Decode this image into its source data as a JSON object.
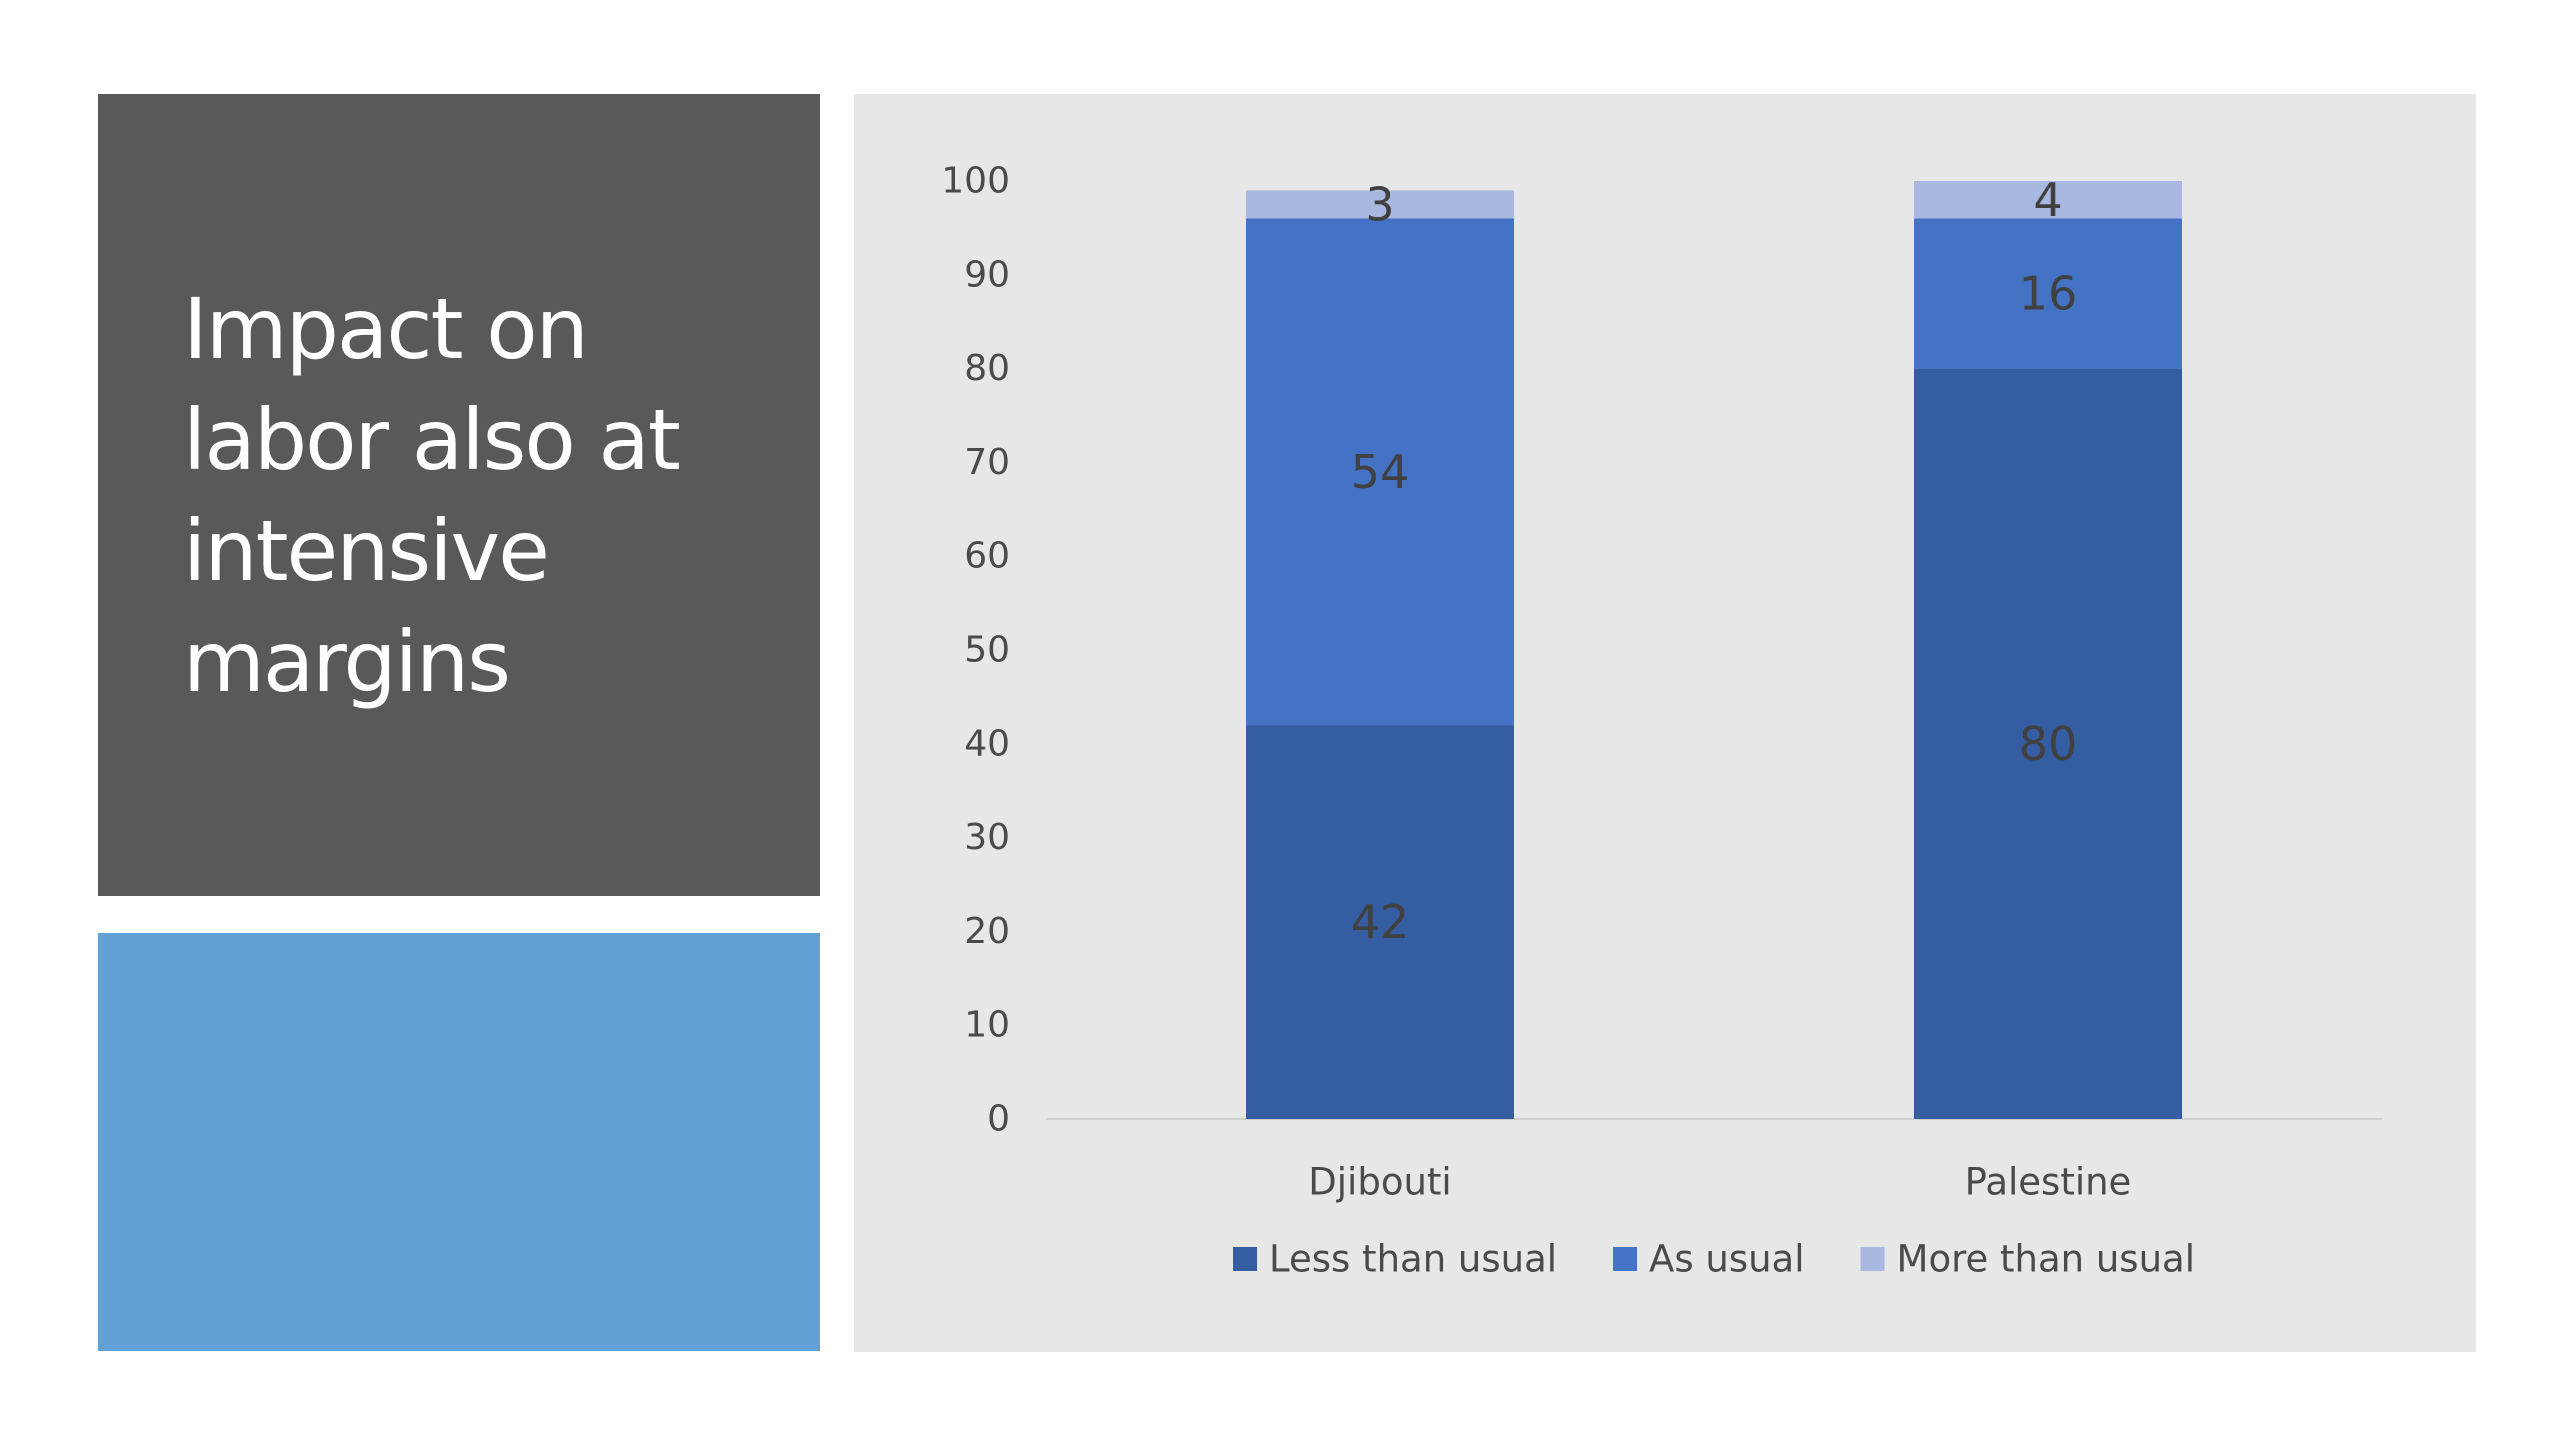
{
  "slide": {
    "title": "Impact on labor also at intensive margins"
  },
  "chart_data": {
    "type": "bar",
    "stacked": true,
    "categories": [
      "Djibouti",
      "Palestine"
    ],
    "series": [
      {
        "name": "Less than usual",
        "values": [
          42,
          80
        ],
        "color": "#355ea2"
      },
      {
        "name": "As usual",
        "values": [
          54,
          16
        ],
        "color": "#4472c4"
      },
      {
        "name": "More than usual",
        "values": [
          3,
          4
        ],
        "color": "#a9b8e0"
      }
    ],
    "ylim": [
      0,
      100
    ],
    "yticks": [
      0,
      10,
      20,
      30,
      40,
      50,
      60,
      70,
      80,
      90,
      100
    ],
    "grid": false,
    "legend": "bottom",
    "data_labels": true,
    "title": "",
    "xlabel": "",
    "ylabel": ""
  },
  "colors": {
    "title_panel": "#595959",
    "accent_panel": "#62a1d6",
    "chart_background": "#e7e7e7"
  }
}
